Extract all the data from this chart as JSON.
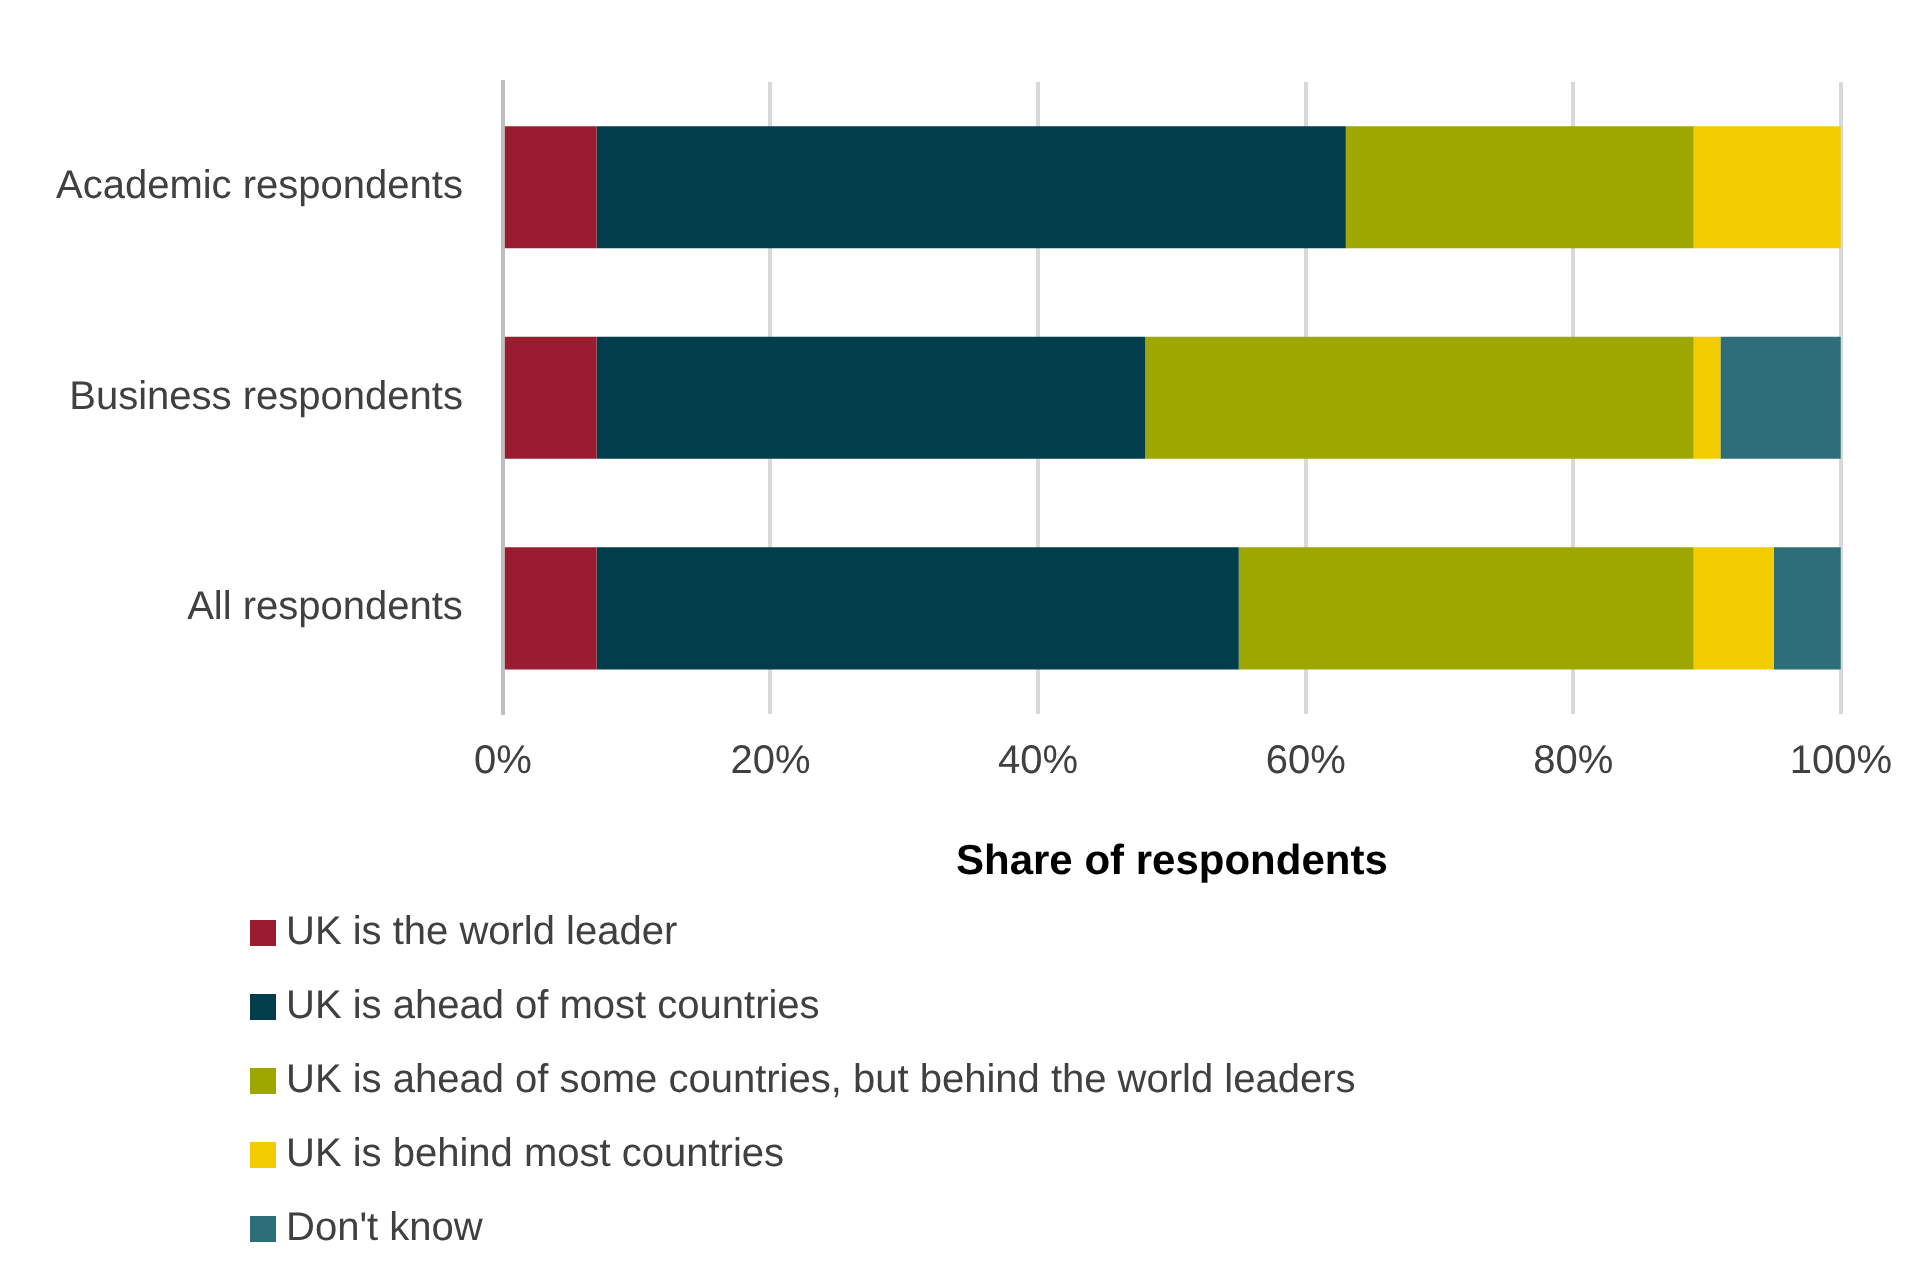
{
  "chart_data": {
    "type": "bar",
    "orientation": "horizontal",
    "stacked": true,
    "xlabel": "Share of respondents",
    "categories": [
      "Academic respondents",
      "Business respondents",
      "All respondents"
    ],
    "series": [
      {
        "name": "UK is the world leader",
        "color": "#9b1c31",
        "values": [
          7,
          7,
          7
        ]
      },
      {
        "name": "UK is ahead of most countries",
        "color": "#023d4c",
        "values": [
          56,
          41,
          48
        ]
      },
      {
        "name": "UK is ahead of some countries, but behind the world leaders",
        "color": "#9ea700",
        "values": [
          26,
          41,
          34
        ]
      },
      {
        "name": "UK is behind most countries",
        "color": "#f2cc00",
        "values": [
          11,
          2,
          6
        ]
      },
      {
        "name": "Don't know",
        "color": "#2e6e78",
        "values": [
          0,
          9,
          5
        ]
      }
    ],
    "xlim": [
      0,
      100
    ],
    "xticks": [
      {
        "value": 0,
        "label": "0%"
      },
      {
        "value": 20,
        "label": "20%"
      },
      {
        "value": 40,
        "label": "40%"
      },
      {
        "value": 60,
        "label": "60%"
      },
      {
        "value": 80,
        "label": "80%"
      },
      {
        "value": 100,
        "label": "100%"
      }
    ],
    "grid": "x",
    "legend": "bottom"
  }
}
